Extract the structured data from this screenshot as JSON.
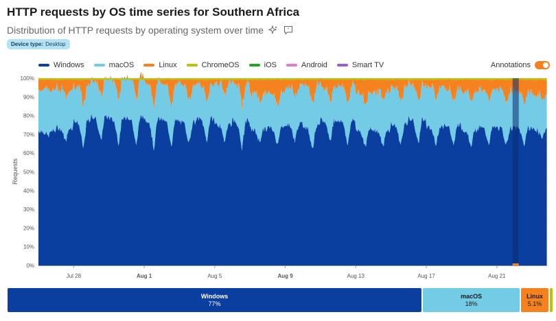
{
  "header": {
    "title": "HTTP requests by OS time series for Southern Africa",
    "subtitle": "Distribution of HTTP requests by operating system over time",
    "badge_key": "Device type:",
    "badge_value": "Desktop"
  },
  "annotations_label": "Annotations",
  "colors": {
    "Windows": "#0a3fa0",
    "macOS": "#73cbe6",
    "Linux": "#f6821f",
    "ChromeOS": "#b5c50b",
    "iOS": "#25a324",
    "Android": "#e07ad0",
    "Smart TV": "#9a5ec9"
  },
  "chart_data": {
    "type": "area",
    "stacked": true,
    "percent": true,
    "title": "HTTP requests by OS time series for Southern Africa",
    "ylabel": "Requests",
    "ylim": [
      0,
      100
    ],
    "yticks": [
      "0%",
      "10%",
      "20%",
      "30%",
      "40%",
      "50%",
      "60%",
      "70%",
      "80%",
      "90%",
      "100%"
    ],
    "x_start": "Jul 26",
    "x_end": "Aug 23",
    "xticks": [
      {
        "label": "Jul 28",
        "day": 2,
        "bold": false
      },
      {
        "label": "Aug 1",
        "day": 6,
        "bold": true
      },
      {
        "label": "Aug 5",
        "day": 10,
        "bold": false
      },
      {
        "label": "Aug 9",
        "day": 14,
        "bold": true
      },
      {
        "label": "Aug 13",
        "day": 18,
        "bold": false
      },
      {
        "label": "Aug 17",
        "day": 22,
        "bold": false
      },
      {
        "label": "Aug 21",
        "day": 26,
        "bold": false
      }
    ],
    "legend": [
      "Windows",
      "macOS",
      "Linux",
      "ChromeOS",
      "iOS",
      "Android",
      "Smart TV"
    ],
    "daily_windows_peak": [
      72,
      74,
      78,
      80,
      79,
      80,
      79,
      78,
      77,
      79,
      76,
      78,
      73,
      74,
      76,
      75,
      78,
      78,
      73,
      73,
      76,
      79,
      74,
      76,
      73,
      74,
      74,
      74,
      73
    ],
    "daily_windows_trough": [
      69,
      66,
      62,
      66,
      65,
      63,
      62,
      64,
      65,
      66,
      66,
      62,
      66,
      65,
      66,
      62,
      66,
      64,
      63,
      63,
      64,
      64,
      65,
      63,
      64,
      65,
      64,
      64,
      68
    ],
    "daily_macos_mid": [
      22,
      21,
      19,
      20,
      21,
      22,
      20,
      19,
      20,
      18,
      22,
      20,
      19,
      18,
      20,
      22,
      18,
      19,
      20,
      21,
      20,
      19,
      22,
      20,
      21,
      20,
      20,
      19,
      18
    ],
    "highlight_day": 27.05,
    "summary": [
      {
        "name": "Windows",
        "value": "77%",
        "share": 77
      },
      {
        "name": "macOS",
        "value": "18%",
        "share": 18
      },
      {
        "name": "Linux",
        "value": "5.1%",
        "share": 5.1
      },
      {
        "name": "ChromeOS",
        "value": "",
        "share": 0.5
      }
    ]
  }
}
